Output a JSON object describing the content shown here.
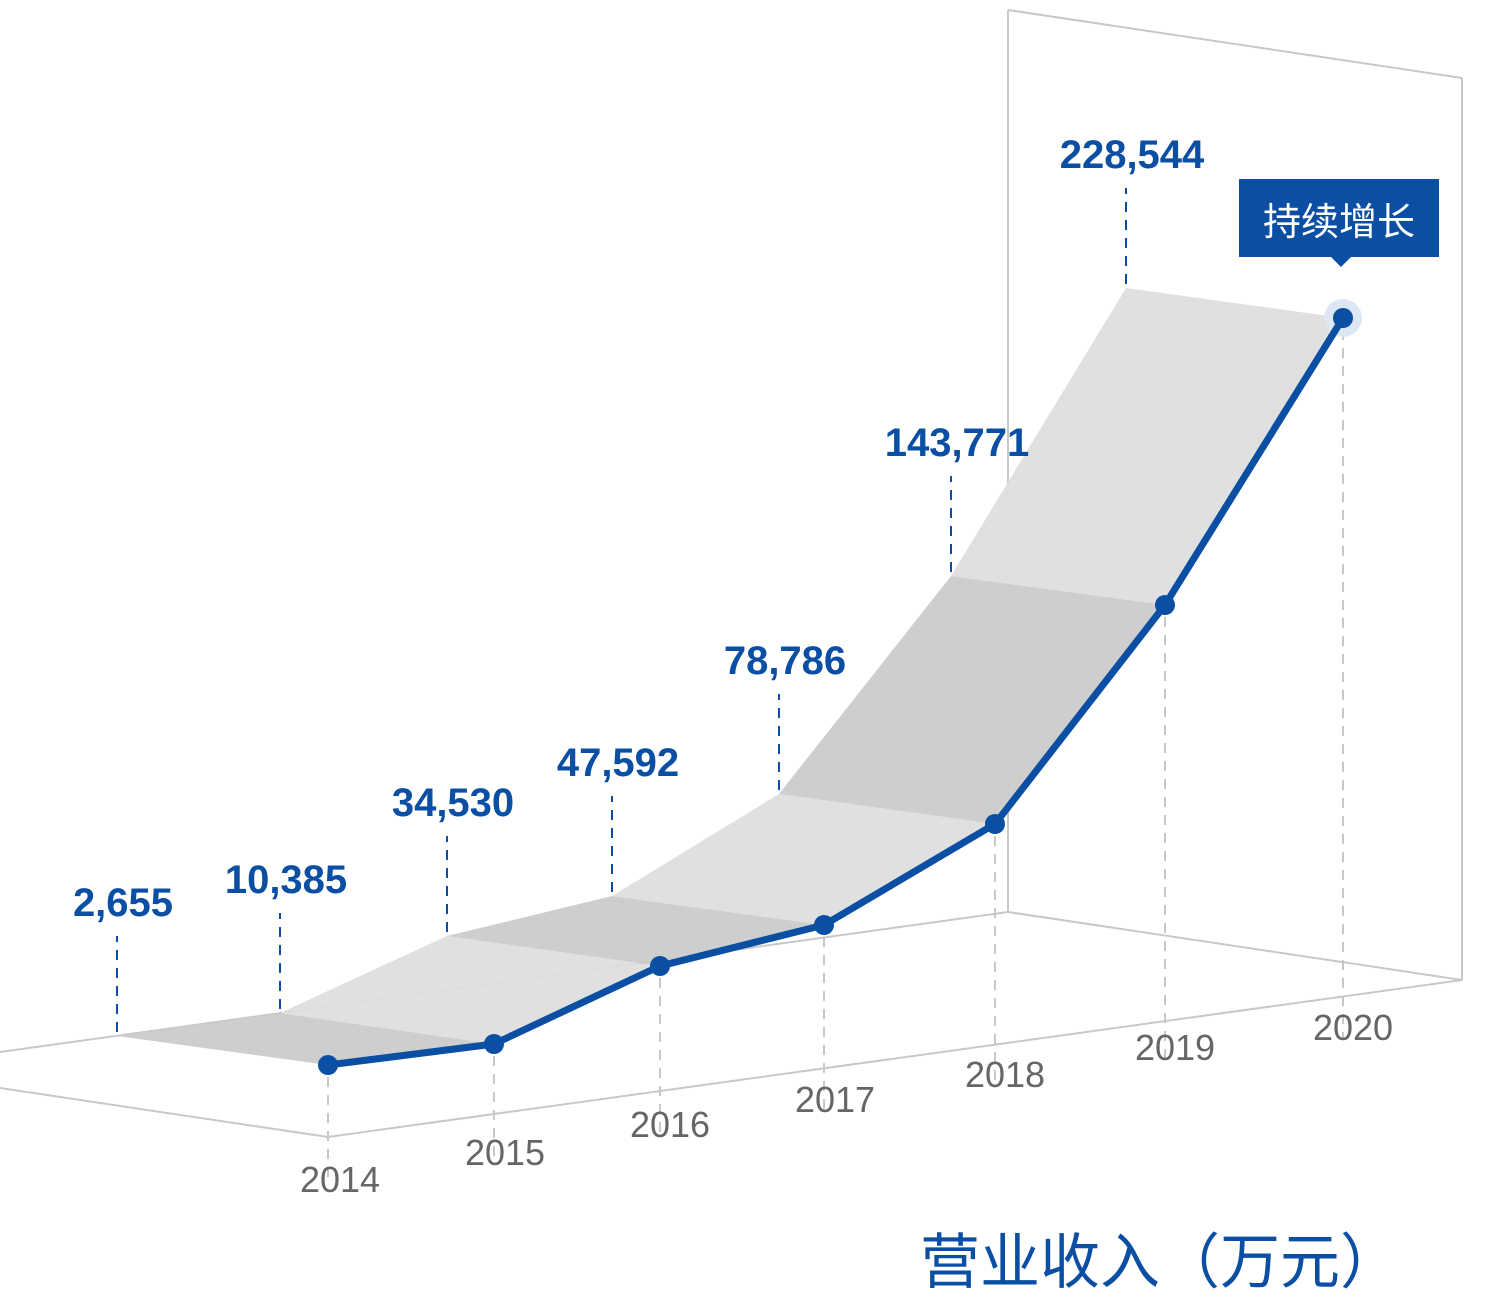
{
  "chart_data": {
    "type": "line",
    "title": "营业收入（万元）",
    "categories": [
      "2014",
      "2015",
      "2016",
      "2017",
      "2018",
      "2019",
      "2020"
    ],
    "values": [
      2655,
      10385,
      34530,
      47592,
      78786,
      143771,
      228544
    ],
    "value_labels": [
      "2,655",
      "10,385",
      "34,530",
      "47,592",
      "78,786",
      "143,771",
      "228,544"
    ],
    "annotation": "持续增长",
    "grid": false,
    "style": "3d-ribbon",
    "colors": {
      "line": "#0a4fa3",
      "ribbon_dark": "#cbcbcb",
      "ribbon_light": "#dedede",
      "axis": "#c8c8c8",
      "year_text": "#666666"
    }
  }
}
